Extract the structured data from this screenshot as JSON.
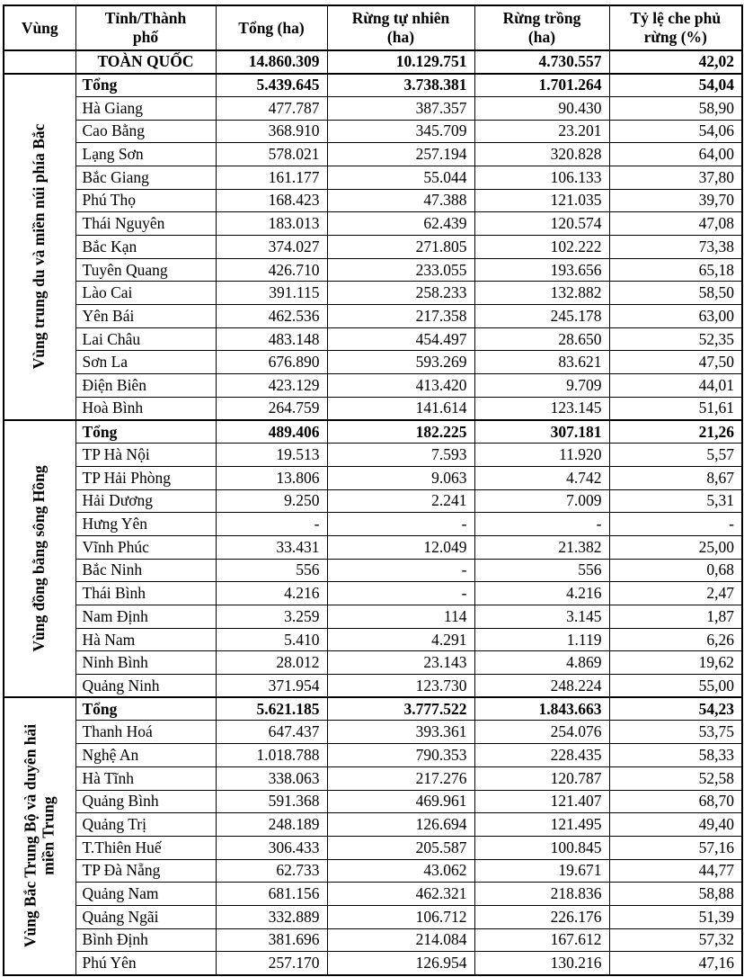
{
  "page": {
    "background": "#ffffff",
    "text_color": "#000000",
    "border_color": "#000000"
  },
  "table": {
    "columns": [
      "Vùng",
      "Tỉnh/Thành phố",
      "Tổng (ha)",
      "Rừng tự nhiên (ha)",
      "Rừng trồng (ha)",
      "Tỷ lệ che phủ rừng (%)"
    ],
    "total_label": "Tổng",
    "national": {
      "name": "TOÀN QUỐC",
      "values": [
        "14.860.309",
        "10.129.751",
        "4.730.557",
        "42,02"
      ]
    },
    "regions": [
      {
        "name": "Vùng trung du và miền núi phía Bắc",
        "total": [
          "5.439.645",
          "3.738.381",
          "1.701.264",
          "54,04"
        ],
        "provinces": [
          {
            "name": "Hà Giang",
            "values": [
              "477.787",
              "387.357",
              "90.430",
              "58,90"
            ]
          },
          {
            "name": "Cao Bằng",
            "values": [
              "368.910",
              "345.709",
              "23.201",
              "54,06"
            ]
          },
          {
            "name": "Lạng Sơn",
            "values": [
              "578.021",
              "257.194",
              "320.828",
              "64,00"
            ]
          },
          {
            "name": "Bắc Giang",
            "values": [
              "161.177",
              "55.044",
              "106.133",
              "37,80"
            ]
          },
          {
            "name": "Phú Thọ",
            "values": [
              "168.423",
              "47.388",
              "121.035",
              "39,70"
            ]
          },
          {
            "name": "Thái Nguyên",
            "values": [
              "183.013",
              "62.439",
              "120.574",
              "47,08"
            ]
          },
          {
            "name": "Bắc Kạn",
            "values": [
              "374.027",
              "271.805",
              "102.222",
              "73,38"
            ]
          },
          {
            "name": "Tuyên Quang",
            "values": [
              "426.710",
              "233.055",
              "193.656",
              "65,18"
            ]
          },
          {
            "name": "Lào Cai",
            "values": [
              "391.115",
              "258.233",
              "132.882",
              "58,50"
            ]
          },
          {
            "name": "Yên Bái",
            "values": [
              "462.536",
              "217.358",
              "245.178",
              "63,00"
            ]
          },
          {
            "name": "Lai Châu",
            "values": [
              "483.148",
              "454.497",
              "28.650",
              "52,35"
            ]
          },
          {
            "name": "Sơn La",
            "values": [
              "676.890",
              "593.269",
              "83.621",
              "47,50"
            ]
          },
          {
            "name": "Điện Biên",
            "values": [
              "423.129",
              "413.420",
              "9.709",
              "44,01"
            ]
          },
          {
            "name": "Hoà Bình",
            "values": [
              "264.759",
              "141.614",
              "123.145",
              "51,61"
            ]
          }
        ]
      },
      {
        "name": "Vùng đồng bằng sông Hồng",
        "total": [
          "489.406",
          "182.225",
          "307.181",
          "21,26"
        ],
        "provinces": [
          {
            "name": "TP Hà Nội",
            "values": [
              "19.513",
              "7.593",
              "11.920",
              "5,57"
            ]
          },
          {
            "name": "TP Hải Phòng",
            "values": [
              "13.806",
              "9.063",
              "4.742",
              "8,67"
            ]
          },
          {
            "name": "Hải Dương",
            "values": [
              "9.250",
              "2.241",
              "7.009",
              "5,31"
            ]
          },
          {
            "name": "Hưng Yên",
            "values": [
              "-",
              "-",
              "-",
              "-"
            ]
          },
          {
            "name": "Vĩnh Phúc",
            "values": [
              "33.431",
              "12.049",
              "21.382",
              "25,00"
            ]
          },
          {
            "name": "Bắc Ninh",
            "values": [
              "556",
              "-",
              "556",
              "0,68"
            ]
          },
          {
            "name": "Thái Bình",
            "values": [
              "4.216",
              "-",
              "4.216",
              "2,47"
            ]
          },
          {
            "name": "Nam Định",
            "values": [
              "3.259",
              "114",
              "3.145",
              "1,87"
            ]
          },
          {
            "name": "Hà Nam",
            "values": [
              "5.410",
              "4.291",
              "1.119",
              "6,26"
            ]
          },
          {
            "name": "Ninh Bình",
            "values": [
              "28.012",
              "23.143",
              "4.869",
              "19,62"
            ]
          },
          {
            "name": "Quảng Ninh",
            "values": [
              "371.954",
              "123.730",
              "248.224",
              "55,00"
            ]
          }
        ]
      },
      {
        "name": "Vùng Bắc Trung Bộ và duyên hải miền Trung",
        "total": [
          "5.621.185",
          "3.777.522",
          "1.843.663",
          "54,23"
        ],
        "provinces": [
          {
            "name": "Thanh Hoá",
            "values": [
              "647.437",
              "393.361",
              "254.076",
              "53,75"
            ]
          },
          {
            "name": "Nghệ An",
            "values": [
              "1.018.788",
              "790.353",
              "228.435",
              "58,33"
            ]
          },
          {
            "name": "Hà Tĩnh",
            "values": [
              "338.063",
              "217.276",
              "120.787",
              "52,58"
            ]
          },
          {
            "name": "Quảng Bình",
            "values": [
              "591.368",
              "469.961",
              "121.407",
              "68,70"
            ]
          },
          {
            "name": "Quảng Trị",
            "values": [
              "248.189",
              "126.694",
              "121.495",
              "49,40"
            ]
          },
          {
            "name": "T.Thiên Huế",
            "values": [
              "306.433",
              "205.587",
              "100.845",
              "57,16"
            ]
          },
          {
            "name": "TP Đà Nẵng",
            "values": [
              "62.733",
              "43.062",
              "19.671",
              "44,77"
            ]
          },
          {
            "name": "Quảng Nam",
            "values": [
              "681.156",
              "462.321",
              "218.836",
              "58,88"
            ]
          },
          {
            "name": "Quảng Ngãi",
            "values": [
              "332.889",
              "106.712",
              "226.176",
              "51,39"
            ]
          },
          {
            "name": "Bình Định",
            "values": [
              "381.696",
              "214.084",
              "167.612",
              "57,32"
            ]
          },
          {
            "name": "Phú Yên",
            "values": [
              "257.170",
              "126.954",
              "130.216",
              "47,16"
            ]
          }
        ]
      }
    ]
  }
}
